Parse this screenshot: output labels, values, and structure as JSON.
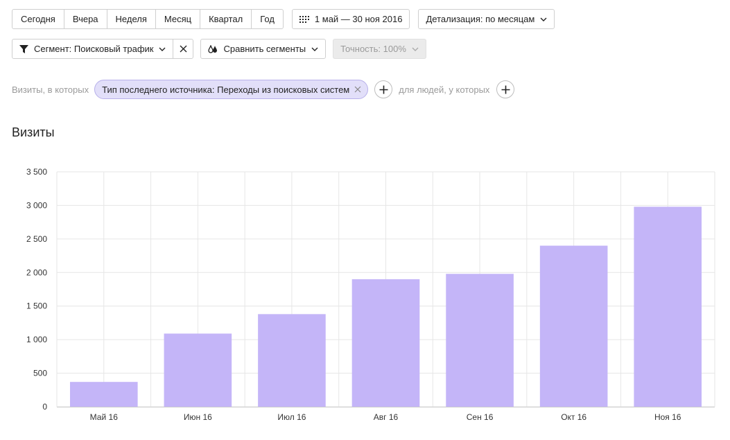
{
  "periods": [
    "Сегодня",
    "Вчера",
    "Неделя",
    "Месяц",
    "Квартал",
    "Год"
  ],
  "date_range": "1 май — 30 ноя 2016",
  "detail_label": "Детализация: по месяцам",
  "segment_label": "Сегмент: Поисковый трафик",
  "compare_label": "Сравнить сегменты",
  "accuracy_label": "Точность: 100%",
  "filter": {
    "prefix": "Визиты, в которых",
    "chip": "Тип последнего источника: Переходы из поисковых систем",
    "people_label": "для людей, у которых"
  },
  "colors": {
    "bar": "#c4b5f8",
    "grid": "#e6e6e6"
  },
  "chart_data": {
    "type": "bar",
    "title": "Визиты",
    "categories": [
      "Май 16",
      "Июн 16",
      "Июл 16",
      "Авг 16",
      "Сен 16",
      "Окт 16",
      "Ноя 16"
    ],
    "values": [
      370,
      1090,
      1380,
      1900,
      1980,
      2400,
      2980
    ],
    "ylim": [
      0,
      3500
    ],
    "yticks": [
      0,
      500,
      1000,
      1500,
      2000,
      2500,
      3000,
      3500
    ],
    "ytick_labels": [
      "0",
      "500",
      "1 000",
      "1 500",
      "2 000",
      "2 500",
      "3 000",
      "3 500"
    ],
    "grid": true
  }
}
